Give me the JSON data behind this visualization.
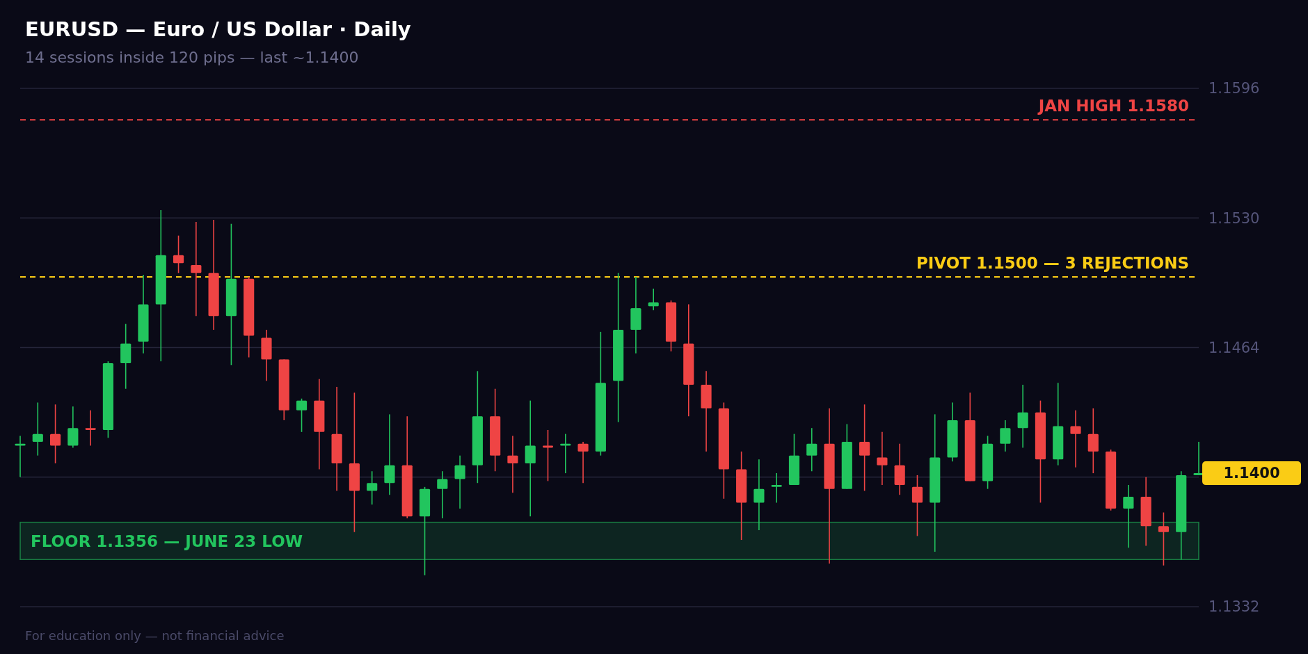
{
  "chart_data": {
    "type": "candlestick",
    "title": "EURUSD — Euro / US Dollar · Daily",
    "subtitle": "14 sessions inside 120 pips — last ~1.1400",
    "categories": [
      null,
      null,
      null,
      null,
      null,
      null,
      null,
      null,
      null,
      null,
      null,
      null,
      null,
      null,
      null,
      null,
      null,
      null,
      null,
      null,
      null,
      null,
      null,
      null,
      null,
      null,
      null,
      null,
      null,
      null,
      null,
      null,
      null,
      null,
      null,
      null,
      null,
      null,
      null,
      null,
      null,
      null,
      null,
      null,
      null,
      null,
      null,
      null,
      null,
      null,
      null,
      null,
      null,
      null,
      null,
      null,
      null,
      null,
      null,
      null,
      null,
      null,
      null,
      null,
      null,
      null,
      null,
      null
    ],
    "ohlc": [
      [
        1.1414,
        1.1419,
        1.1398,
        1.1415
      ],
      [
        1.1416,
        1.1436,
        1.1409,
        1.142
      ],
      [
        1.142,
        1.1435,
        1.1405,
        1.1414
      ],
      [
        1.1414,
        1.1434,
        1.1413,
        1.1423
      ],
      [
        1.1423,
        1.1432,
        1.1414,
        1.1422
      ],
      [
        1.1422,
        1.1457,
        1.1418,
        1.1456
      ],
      [
        1.1456,
        1.1476,
        1.1443,
        1.1466
      ],
      [
        1.1467,
        1.1501,
        1.1461,
        1.1486
      ],
      [
        1.1486,
        1.1534,
        1.1457,
        1.1511
      ],
      [
        1.1511,
        1.1521,
        1.1502,
        1.1507
      ],
      [
        1.1506,
        1.1528,
        1.148,
        1.1502
      ],
      [
        1.1502,
        1.1529,
        1.1473,
        1.148
      ],
      [
        1.148,
        1.1527,
        1.1455,
        1.1499
      ],
      [
        1.1499,
        1.15,
        1.1459,
        1.147
      ],
      [
        1.1469,
        1.1473,
        1.1447,
        1.1458
      ],
      [
        1.1458,
        1.1458,
        1.1427,
        1.1432
      ],
      [
        1.1432,
        1.1438,
        1.1421,
        1.1437
      ],
      [
        1.1437,
        1.1448,
        1.1402,
        1.1421
      ],
      [
        1.142,
        1.1444,
        1.1391,
        1.1405
      ],
      [
        1.1405,
        1.1441,
        1.137,
        1.1391
      ],
      [
        1.1391,
        1.1401,
        1.1384,
        1.1395
      ],
      [
        1.1395,
        1.143,
        1.1389,
        1.1404
      ],
      [
        1.1404,
        1.1429,
        1.1377,
        1.1378
      ],
      [
        1.1378,
        1.1393,
        1.1348,
        1.1392
      ],
      [
        1.1392,
        1.1401,
        1.1377,
        1.1397
      ],
      [
        1.1397,
        1.1409,
        1.1382,
        1.1404
      ],
      [
        1.1404,
        1.1452,
        1.1395,
        1.1429
      ],
      [
        1.1429,
        1.1443,
        1.1401,
        1.1409
      ],
      [
        1.1409,
        1.1419,
        1.139,
        1.1405
      ],
      [
        1.1405,
        1.1437,
        1.1378,
        1.1414
      ],
      [
        1.1414,
        1.1422,
        1.1396,
        1.1413
      ],
      [
        1.1414,
        1.142,
        1.14,
        1.1415
      ],
      [
        1.1415,
        1.1416,
        1.1395,
        1.1411
      ],
      [
        1.1411,
        1.1472,
        1.1409,
        1.1446
      ],
      [
        1.1447,
        1.1502,
        1.1426,
        1.1473
      ],
      [
        1.1473,
        1.15,
        1.1461,
        1.1484
      ],
      [
        1.1485,
        1.1494,
        1.1483,
        1.1487
      ],
      [
        1.1487,
        1.1488,
        1.1462,
        1.1467
      ],
      [
        1.1466,
        1.1486,
        1.1429,
        1.1445
      ],
      [
        1.1445,
        1.1452,
        1.1411,
        1.1433
      ],
      [
        1.1433,
        1.1436,
        1.1387,
        1.1402
      ],
      [
        1.1402,
        1.1411,
        1.1366,
        1.1385
      ],
      [
        1.1385,
        1.1407,
        1.1371,
        1.1392
      ],
      [
        1.1393,
        1.14,
        1.1385,
        1.1394
      ],
      [
        1.1394,
        1.142,
        1.1394,
        1.1409
      ],
      [
        1.1409,
        1.1423,
        1.1401,
        1.1415
      ],
      [
        1.1415,
        1.1433,
        1.1354,
        1.1392
      ],
      [
        1.1392,
        1.1425,
        1.1392,
        1.1416
      ],
      [
        1.1416,
        1.1435,
        1.1391,
        1.1409
      ],
      [
        1.1408,
        1.1421,
        1.1394,
        1.1404
      ],
      [
        1.1404,
        1.1415,
        1.1389,
        1.1394
      ],
      [
        1.1393,
        1.1399,
        1.1368,
        1.1385
      ],
      [
        1.1385,
        1.143,
        1.136,
        1.1408
      ],
      [
        1.1408,
        1.1436,
        1.1406,
        1.1427
      ],
      [
        1.1427,
        1.1441,
        1.1396,
        1.1396
      ],
      [
        1.1396,
        1.1419,
        1.1392,
        1.1415
      ],
      [
        1.1415,
        1.1427,
        1.1411,
        1.1423
      ],
      [
        1.1423,
        1.1445,
        1.1413,
        1.1431
      ],
      [
        1.1431,
        1.1437,
        1.1385,
        1.1407
      ],
      [
        1.1407,
        1.1446,
        1.1404,
        1.1424
      ],
      [
        1.1424,
        1.1432,
        1.1403,
        1.142
      ],
      [
        1.142,
        1.1433,
        1.14,
        1.1411
      ],
      [
        1.1411,
        1.1412,
        1.1381,
        1.1382
      ],
      [
        1.1382,
        1.1394,
        1.1362,
        1.1388
      ],
      [
        1.1388,
        1.1398,
        1.1363,
        1.1373
      ],
      [
        1.1373,
        1.138,
        1.1353,
        1.137
      ],
      [
        1.137,
        1.1401,
        1.1356,
        1.1399
      ],
      [
        1.1399,
        1.1416,
        1.1399,
        1.14
      ]
    ],
    "colors": [
      "#22c55e",
      "#22c55e",
      "#ef4444",
      "#22c55e",
      "#ef4444",
      "#22c55e",
      "#22c55e",
      "#22c55e",
      "#22c55e",
      "#ef4444",
      "#ef4444",
      "#ef4444",
      "#22c55e",
      "#ef4444",
      "#ef4444",
      "#ef4444",
      "#22c55e",
      "#ef4444",
      "#ef4444",
      "#ef4444",
      "#22c55e",
      "#22c55e",
      "#ef4444",
      "#22c55e",
      "#22c55e",
      "#22c55e",
      "#22c55e",
      "#ef4444",
      "#ef4444",
      "#22c55e",
      "#ef4444",
      "#22c55e",
      "#ef4444",
      "#22c55e",
      "#22c55e",
      "#22c55e",
      "#22c55e",
      "#ef4444",
      "#ef4444",
      "#ef4444",
      "#ef4444",
      "#ef4444",
      "#22c55e",
      "#22c55e",
      "#22c55e",
      "#22c55e",
      "#ef4444",
      "#22c55e",
      "#ef4444",
      "#ef4444",
      "#ef4444",
      "#ef4444",
      "#22c55e",
      "#22c55e",
      "#ef4444",
      "#22c55e",
      "#22c55e",
      "#22c55e",
      "#ef4444",
      "#22c55e",
      "#ef4444",
      "#ef4444",
      "#ef4444",
      "#22c55e",
      "#ef4444",
      "#ef4444",
      "#22c55e",
      "#22c55e"
    ],
    "ylim": [
      1.1332,
      1.1596
    ],
    "yticks": [
      {
        "value": 1.1332,
        "label": "1.1332"
      },
      {
        "value": 1.1398,
        "label": null
      },
      {
        "value": 1.1464,
        "label": "1.1464"
      },
      {
        "value": 1.153,
        "label": "1.1530"
      },
      {
        "value": 1.1596,
        "label": "1.1596"
      }
    ],
    "grid": "y",
    "ref_lines": [
      {
        "axis": "y",
        "value": 1.158,
        "label": "JAN HIGH 1.1580",
        "color": "#ef4444",
        "line_style": "dashed"
      },
      {
        "axis": "y",
        "value": 1.15,
        "label": "PIVOT 1.1500 — 3 REJECTIONS",
        "color": "#facc15",
        "line_style": "dashed"
      }
    ],
    "bands": [
      {
        "axis": "y",
        "from": 1.1356,
        "to": 1.1375,
        "label": "FLOOR 1.1356 — JUNE 23 LOW",
        "color": "#22c55e"
      }
    ],
    "annotations": [
      "1.1400",
      "For education only — not financial advice"
    ]
  }
}
